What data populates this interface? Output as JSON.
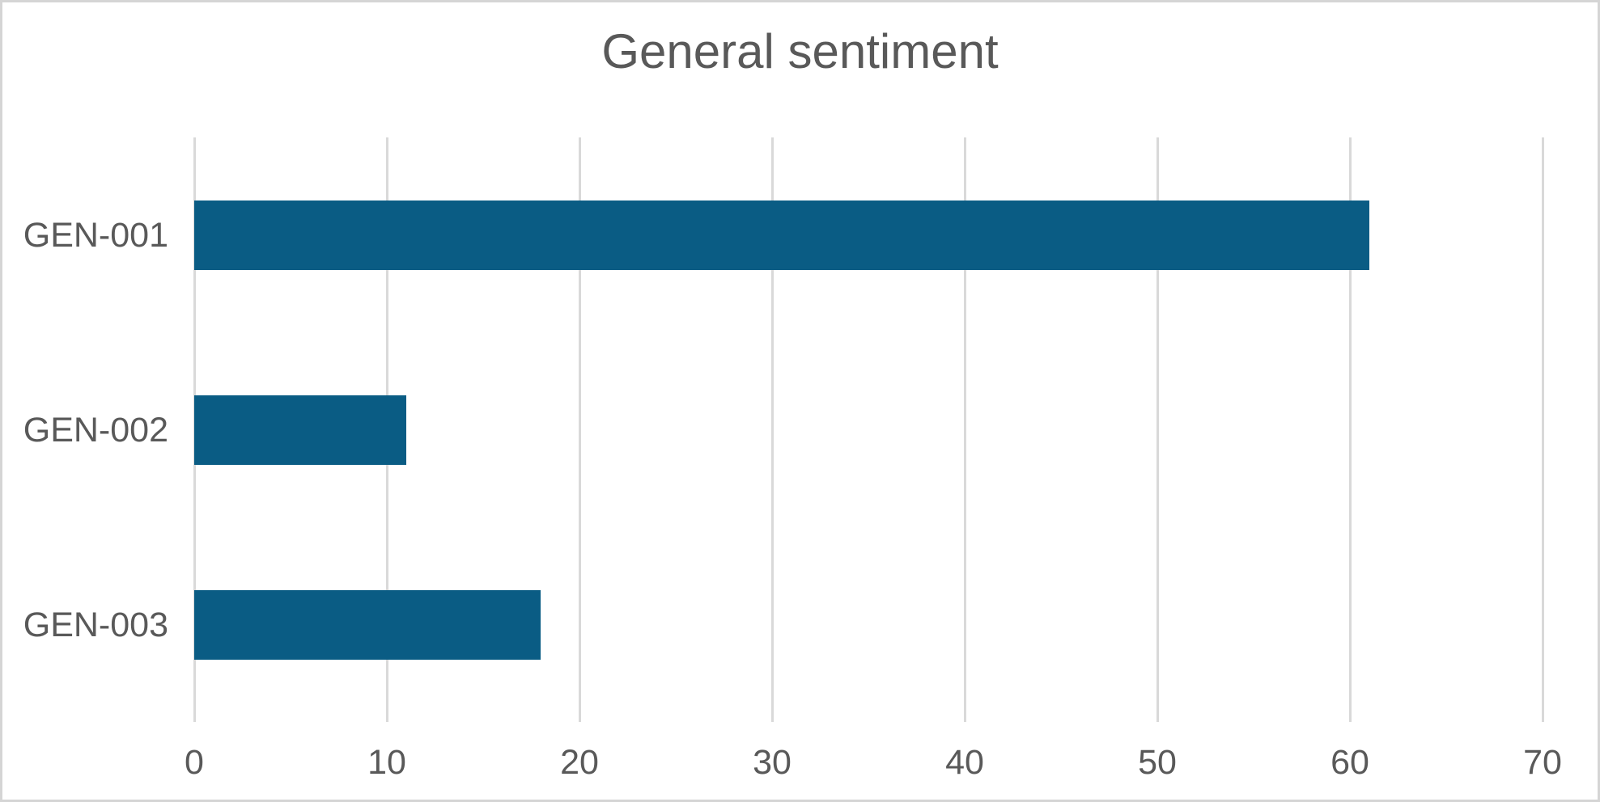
{
  "chart_data": {
    "type": "bar",
    "orientation": "horizontal",
    "title": "General sentiment",
    "categories": [
      "GEN-001",
      "GEN-002",
      "GEN-003"
    ],
    "values": [
      61,
      11,
      18
    ],
    "xlabel": "",
    "ylabel": "",
    "xlim": [
      0,
      70
    ],
    "x_ticks": [
      0,
      10,
      20,
      30,
      40,
      50,
      60,
      70
    ],
    "grid": "vertical-only",
    "legend": "none",
    "data_labels": "none",
    "colors": {
      "bar": "#0a5c84",
      "text": "#595959",
      "gridline": "#d9d9d9",
      "frame_border": "#d5d5d5",
      "background": "#ffffff"
    }
  }
}
